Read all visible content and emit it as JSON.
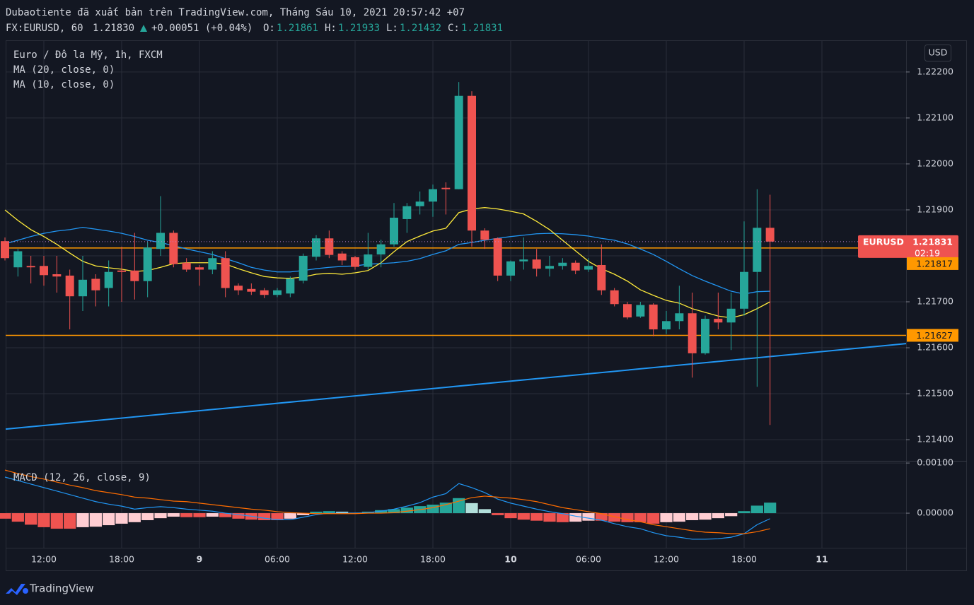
{
  "header": {
    "published": "Dubaotiente đã xuất bản trên TradingView.com, Tháng Sáu 10, 2021 20:57:42 +07",
    "symbol": "FX:EURUSD, 60",
    "last": "1.21830",
    "change": "+0.00051 (+0.04%)",
    "ohlc": [
      {
        "label": "O:",
        "value": "1.21861"
      },
      {
        "label": "H:",
        "value": "1.21933"
      },
      {
        "label": "L:",
        "value": "1.21432"
      },
      {
        "label": "C:",
        "value": "1.21831"
      }
    ],
    "currency": "USD",
    "tag_symbol": "EURUSD",
    "countdown": "02:19",
    "logo": "TradingView"
  },
  "chart_data": [
    {
      "type": "candlestick",
      "title": "Euro / Đô la Mỹ, 1h, FXCM",
      "categories": [
        null,
        null,
        null,
        "12:00",
        null,
        null,
        null,
        null,
        null,
        "18:00",
        null,
        null,
        null,
        null,
        null,
        "9",
        null,
        null,
        null,
        null,
        null,
        "06:00",
        null,
        null,
        null,
        null,
        null,
        "12:00",
        null,
        null,
        null,
        null,
        null,
        "18:00",
        null,
        null,
        null,
        null,
        null,
        "10",
        null,
        null,
        null,
        null,
        null,
        "06:00",
        null,
        null,
        null,
        null,
        null,
        "12:00",
        null,
        null,
        null,
        null,
        null,
        "18:00",
        null,
        null,
        null,
        null,
        null,
        "11"
      ],
      "open": [
        1.21832,
        1.21775,
        1.21778,
        1.21778,
        1.2176,
        1.21757,
        1.21712,
        1.2175,
        1.2173,
        1.21768,
        1.21768,
        1.21745,
        1.21815,
        1.2185,
        1.21785,
        1.21775,
        1.2177,
        1.21795,
        1.21735,
        1.21728,
        1.21725,
        1.21715,
        1.21718,
        1.21746,
        1.21798,
        1.21838,
        1.21805,
        1.21797,
        1.21776,
        1.21803,
        1.21825,
        1.2188,
        1.21908,
        1.21918,
        1.21948,
        1.21945,
        1.22148,
        1.21855,
        1.21838,
        1.21757,
        1.21788,
        1.21792,
        1.21772,
        1.21778,
        1.21785,
        1.2177,
        1.2178,
        1.21725,
        1.21695,
        1.21668,
        1.21694,
        1.2164,
        1.21658,
        1.21675,
        1.21588,
        1.21663,
        1.21655,
        1.21685,
        1.21765,
        1.21861,
        null,
        null,
        null,
        null
      ],
      "high": [
        1.2184,
        1.21815,
        1.218,
        1.218,
        1.218,
        1.2177,
        1.218,
        1.2176,
        1.2179,
        1.2182,
        1.2185,
        1.2183,
        1.2193,
        1.21855,
        1.21795,
        1.2178,
        1.2181,
        1.2181,
        1.2174,
        1.2174,
        1.2173,
        1.2173,
        1.21755,
        1.21805,
        1.21845,
        1.21855,
        1.2181,
        1.218,
        1.2185,
        1.21835,
        1.21915,
        1.21915,
        1.2194,
        1.21955,
        1.2196,
        1.22178,
        1.22158,
        1.2186,
        1.2184,
        1.2179,
        1.2184,
        1.21815,
        1.218,
        1.21795,
        1.2179,
        1.21795,
        1.21825,
        1.2173,
        1.217,
        1.217,
        1.21697,
        1.2168,
        1.21735,
        1.2172,
        1.2167,
        1.2172,
        1.2172,
        1.21875,
        1.21945,
        1.21933,
        null,
        null,
        null,
        null
      ],
      "low": [
        1.2179,
        1.21755,
        1.2174,
        1.21735,
        1.2172,
        1.2164,
        1.2168,
        1.2169,
        1.2169,
        1.217,
        1.21705,
        1.2171,
        1.218,
        1.21775,
        1.21765,
        1.21735,
        1.2176,
        1.2171,
        1.21715,
        1.21715,
        1.21708,
        1.2171,
        1.2171,
        1.2174,
        1.2179,
        1.21795,
        1.2178,
        1.2177,
        1.2177,
        1.21775,
        1.2182,
        1.2185,
        1.2189,
        1.21885,
        1.2189,
        1.21945,
        1.2182,
        1.21815,
        1.21745,
        1.21745,
        1.2177,
        1.21755,
        1.21755,
        1.2177,
        1.2176,
        1.21765,
        1.21715,
        1.2169,
        1.21662,
        1.21665,
        1.21625,
        1.2163,
        1.2164,
        1.21535,
        1.21585,
        1.2164,
        1.21595,
        1.2167,
        1.21515,
        1.21432,
        null,
        null,
        null,
        null
      ],
      "close": [
        1.21795,
        1.2181,
        1.21775,
        1.21758,
        1.21755,
        1.21712,
        1.21748,
        1.21725,
        1.21765,
        1.21765,
        1.21745,
        1.21818,
        1.2185,
        1.21782,
        1.2177,
        1.2177,
        1.21795,
        1.2173,
        1.21725,
        1.21722,
        1.21715,
        1.21725,
        1.2175,
        1.218,
        1.21838,
        1.21802,
        1.2179,
        1.21776,
        1.21803,
        1.21825,
        1.21883,
        1.21908,
        1.21918,
        1.21945,
        1.21945,
        1.22148,
        1.21855,
        1.21835,
        1.21757,
        1.21788,
        1.21792,
        1.21772,
        1.21778,
        1.21785,
        1.21768,
        1.21778,
        1.21725,
        1.21695,
        1.21666,
        1.21693,
        1.2164,
        1.21658,
        1.21675,
        1.21588,
        1.21663,
        1.21655,
        1.21685,
        1.21765,
        1.21861,
        1.21831,
        null,
        null,
        null,
        null
      ],
      "up_color": "#26a69a",
      "down_color": "#ef5350",
      "series": [
        {
          "name": "MA (20, close, 0)",
          "color": "#2196f3",
          "values": [
            1.21826,
            1.21834,
            1.21842,
            1.21849,
            1.21854,
            1.21857,
            1.21862,
            1.21858,
            1.21854,
            1.21849,
            1.21842,
            1.21834,
            1.21829,
            1.21822,
            1.21815,
            1.21809,
            1.21803,
            1.21794,
            1.21785,
            1.21775,
            1.21769,
            1.21765,
            1.21765,
            1.21768,
            1.21772,
            1.21775,
            1.21777,
            1.21778,
            1.21782,
            1.21783,
            1.21785,
            1.21788,
            1.21794,
            1.21803,
            1.21811,
            1.21825,
            1.21829,
            1.21834,
            1.21838,
            1.21842,
            1.21845,
            1.21848,
            1.21849,
            1.21848,
            1.21846,
            1.21843,
            1.21838,
            1.21834,
            1.21826,
            1.21815,
            1.21803,
            1.21788,
            1.21772,
            1.21757,
            1.21745,
            1.21734,
            1.21723,
            1.21717,
            1.21722,
            1.21723,
            null,
            null,
            null,
            null
          ]
        },
        {
          "name": "MA (10, close, 0)",
          "color": "#ffeb3b",
          "values": [
            1.219,
            1.21877,
            1.21857,
            1.21842,
            1.21825,
            1.21806,
            1.21788,
            1.21778,
            1.21774,
            1.21771,
            1.21766,
            1.21768,
            1.21775,
            1.21783,
            1.21785,
            1.21785,
            1.21785,
            1.21782,
            1.21772,
            1.21763,
            1.21755,
            1.21752,
            1.21751,
            1.21754,
            1.2176,
            1.21762,
            1.2176,
            1.21763,
            1.21768,
            1.21785,
            1.21809,
            1.21831,
            1.21843,
            1.21854,
            1.2186,
            1.21894,
            1.21902,
            1.21905,
            1.21902,
            1.21897,
            1.21891,
            1.21875,
            1.21857,
            1.21834,
            1.21811,
            1.21788,
            1.21772,
            1.2176,
            1.21745,
            1.21726,
            1.21714,
            1.21703,
            1.21697,
            1.21685,
            1.21677,
            1.21669,
            1.21665,
            1.21672,
            1.21685,
            1.217,
            null,
            null,
            null,
            null
          ]
        }
      ],
      "hlines": [
        1.21817,
        1.21627
      ],
      "hline_color": "#ff9800",
      "trendline": {
        "color": "#2196f3",
        "values": [
          1.21423,
          1.21609
        ]
      },
      "ylim": [
        1.21354,
        1.22269
      ],
      "yticks": [
        {
          "value": 1.222,
          "label": "1.22200"
        },
        {
          "value": 1.221,
          "label": "1.22100"
        },
        {
          "value": 1.22,
          "label": "1.22000"
        },
        {
          "value": 1.219,
          "label": "1.21900"
        },
        {
          "value": 1.218,
          "label": "1.21800"
        },
        {
          "value": 1.217,
          "label": "1.21700"
        },
        {
          "value": 1.216,
          "label": "1.21600"
        },
        {
          "value": 1.215,
          "label": "1.21500"
        },
        {
          "value": 1.214,
          "label": "1.21400"
        }
      ],
      "grid": true
    },
    {
      "type": "macd",
      "title": "MACD (12, 26, close, 9)",
      "series": [
        {
          "color": "#2196f3",
          "values": [
            0.00072,
            0.00065,
            0.00058,
            0.00051,
            0.00044,
            0.00037,
            0.0003,
            0.00023,
            0.00018,
            0.00014,
            8e-05,
            0.00011,
            0.00013,
            0.00011,
            8e-05,
            6e-05,
            4e-05,
            0,
            -3e-05,
            -6e-05,
            -0.0001,
            -0.00013,
            -0.00013,
            -8e-05,
            -3e-05,
            0,
            0,
            0,
            1e-05,
            4e-05,
            8e-05,
            0.00014,
            0.00021,
            0.00032,
            0.00039,
            0.00059,
            0.00051,
            0.00041,
            0.00028,
            0.0002,
            0.00014,
            8e-05,
            3e-05,
            -1e-05,
            -6e-05,
            -0.0001,
            -0.00014,
            -0.00021,
            -0.00027,
            -0.00031,
            -0.00039,
            -0.00045,
            -0.00048,
            -0.00052,
            -0.00052,
            -0.00051,
            -0.00048,
            -0.00041,
            -0.00023,
            -0.00011,
            null,
            null,
            null,
            null
          ]
        },
        {
          "color": "#ff6d00",
          "values": [
            0.00086,
            0.00079,
            0.00073,
            0.00068,
            0.00062,
            0.00056,
            0.00051,
            0.00045,
            0.00041,
            0.00037,
            0.00032,
            0.0003,
            0.00027,
            0.00024,
            0.00023,
            0.0002,
            0.00017,
            0.00014,
            0.00011,
            8e-05,
            6e-05,
            3e-05,
            1e-05,
            0,
            -1e-05,
            -1e-05,
            -1e-05,
            -1e-05,
            0,
            0,
            1e-05,
            4e-05,
            7e-05,
            0.00011,
            0.00017,
            0.00024,
            0.00031,
            0.00034,
            0.00032,
            0.0003,
            0.00027,
            0.00023,
            0.00017,
            0.00011,
            7e-05,
            3e-05,
            -1e-05,
            -7e-05,
            -0.00013,
            -0.00017,
            -0.00023,
            -0.00027,
            -0.00031,
            -0.00035,
            -0.00038,
            -0.00039,
            -0.00041,
            -0.00041,
            -0.00037,
            -0.00031,
            null,
            null,
            null,
            null
          ]
        }
      ],
      "histogram": [
        -0.00011,
        -0.00017,
        -0.00023,
        -0.00028,
        -0.00031,
        -0.00031,
        -0.00028,
        -0.00027,
        -0.00024,
        -0.00021,
        -0.00018,
        -0.00014,
        -0.0001,
        -7e-05,
        -8e-05,
        -8e-05,
        -7e-05,
        -8e-05,
        -0.00011,
        -0.00013,
        -0.00014,
        -0.00014,
        -0.00011,
        -4e-05,
        3e-05,
        4e-05,
        3e-05,
        1e-05,
        3e-05,
        6e-05,
        8e-05,
        0.00011,
        0.00014,
        0.00017,
        0.00021,
        0.0003,
        0.0002,
        8e-05,
        -4e-05,
        -0.0001,
        -0.00013,
        -0.00015,
        -0.00017,
        -0.00018,
        -0.00017,
        -0.00015,
        -0.00015,
        -0.00017,
        -0.00018,
        -0.00018,
        -0.00021,
        -0.00018,
        -0.00017,
        -0.00014,
        -0.00013,
        -0.0001,
        -6e-05,
        4e-05,
        0.00015,
        0.00021,
        null,
        null,
        null,
        null
      ],
      "histogram_colors": {
        "up_rising": "#26a69a",
        "up_falling": "#b2dfdb",
        "down_falling": "#ef5350",
        "down_rising": "#ffcdd2"
      },
      "ylim": [
        -0.00069,
        0.00103
      ],
      "yticks": [
        {
          "value": 0.001,
          "label": "0.00100"
        },
        {
          "value": 0,
          "label": "0.00000"
        }
      ],
      "grid": true
    }
  ]
}
